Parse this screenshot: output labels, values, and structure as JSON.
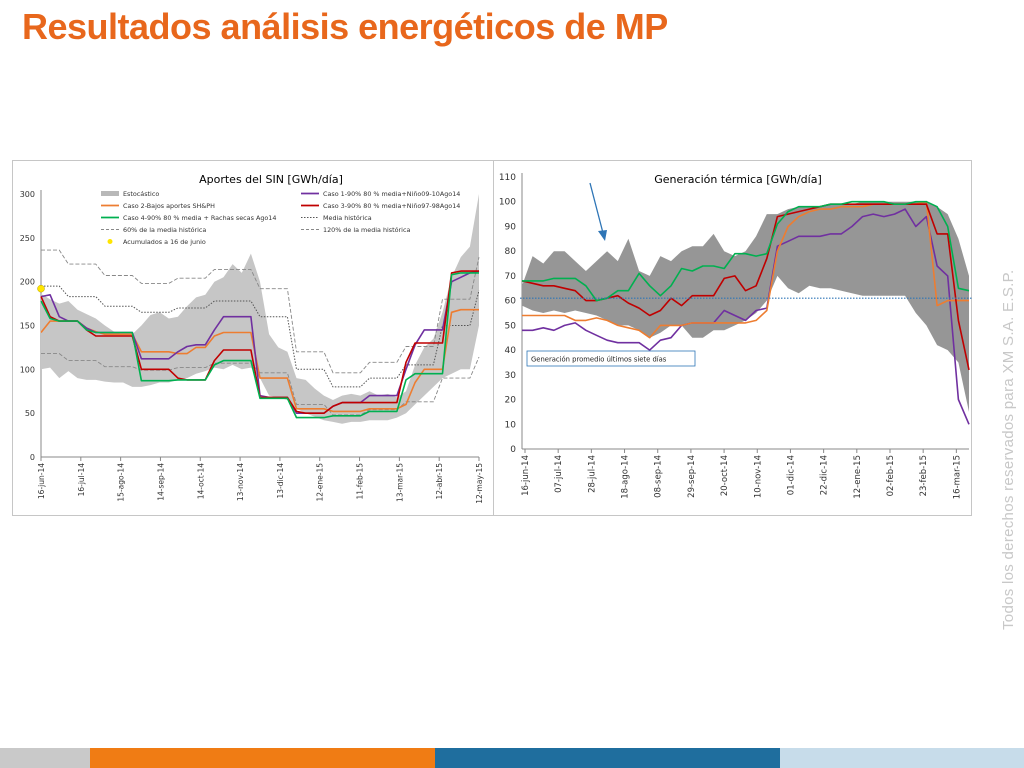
{
  "slide": {
    "title": "Resultados análisis energéticos de MP",
    "copyright": "Todos los derechos reservados para XM S.A. E.S.P.",
    "colors": {
      "title": "#E8671C",
      "copyright": "#c8c8c8",
      "footer": [
        "#c9c9c9",
        "#F07C14",
        "#1F6E9E",
        "#c7dcea"
      ]
    }
  },
  "chart_data": [
    {
      "type": "line",
      "title": "Aportes del SIN [GWh/día]",
      "ylim": [
        0,
        300
      ],
      "yticks": [
        0,
        50,
        100,
        150,
        200,
        250,
        300
      ],
      "x_tick_labels": [
        "16-jun-14",
        "16-jul-14",
        "15-ago-14",
        "14-sep-14",
        "14-oct-14",
        "13-nov-14",
        "13-dic-14",
        "12-ene-15",
        "11-feb-15",
        "13-mar-15",
        "12-abr-15",
        "12-may-15"
      ],
      "n_points": 49,
      "legend": {
        "placement": "top",
        "entries": [
          {
            "label": "Estocástico",
            "style": "band",
            "color": "#c0c0c0"
          },
          {
            "label": "Caso 1-90% 80 % media+Niño09-10Ago14",
            "style": "line",
            "color": "#7030A0"
          },
          {
            "label": "Caso 2-Bajos aportes SH&PH",
            "style": "line",
            "color": "#ED7D31"
          },
          {
            "label": "Caso 3-90% 80 % media+Niño97-98Ago14",
            "style": "line",
            "color": "#C00000"
          },
          {
            "label": "Caso 4-90% 80 % media + Rachas secas Ago14",
            "style": "line",
            "color": "#00B050"
          },
          {
            "label": "Media histórica",
            "style": "dotted",
            "color": "#555555"
          },
          {
            "label": "60% de la media histórica",
            "style": "dashed",
            "color": "#888888"
          },
          {
            "label": "120% de la media histórica",
            "style": "dashed",
            "color": "#888888"
          },
          {
            "label": "Acumulados a 16 de junio",
            "style": "marker",
            "color": "#FFE500"
          }
        ]
      },
      "band_upper": [
        186,
        180,
        175,
        178,
        168,
        163,
        158,
        150,
        143,
        140,
        140,
        150,
        162,
        165,
        158,
        160,
        172,
        182,
        185,
        200,
        205,
        220,
        210,
        232,
        200,
        140,
        125,
        120,
        90,
        88,
        78,
        70,
        65,
        70,
        72,
        70,
        75,
        70,
        72,
        68,
        75,
        105,
        125,
        135,
        165,
        205,
        228,
        240,
        300
      ],
      "band_lower": [
        100,
        102,
        90,
        98,
        90,
        88,
        88,
        86,
        85,
        85,
        80,
        80,
        82,
        85,
        85,
        88,
        90,
        95,
        98,
        102,
        100,
        105,
        100,
        102,
        90,
        70,
        68,
        65,
        55,
        50,
        46,
        42,
        40,
        38,
        40,
        40,
        42,
        42,
        42,
        45,
        50,
        60,
        70,
        80,
        90,
        95,
        100,
        100,
        150
      ],
      "acumulado_point": {
        "x_index": 0,
        "y": 192
      },
      "series": [
        {
          "name": "Media histórica",
          "style": "dotted",
          "color": "#555555",
          "values": [
            195,
            195,
            195,
            183,
            183,
            183,
            183,
            172,
            172,
            172,
            172,
            165,
            165,
            165,
            165,
            170,
            170,
            170,
            170,
            178,
            178,
            178,
            178,
            178,
            160,
            160,
            160,
            160,
            100,
            100,
            100,
            100,
            80,
            80,
            80,
            80,
            90,
            90,
            90,
            90,
            105,
            105,
            105,
            105,
            150,
            150,
            150,
            150,
            190
          ]
        },
        {
          "name": "60% de la media histórica",
          "style": "dashed",
          "color": "#888888",
          "values": [
            118,
            118,
            118,
            110,
            110,
            110,
            110,
            103,
            103,
            103,
            103,
            99,
            99,
            99,
            99,
            102,
            102,
            102,
            102,
            107,
            107,
            107,
            107,
            107,
            96,
            96,
            96,
            96,
            60,
            60,
            60,
            60,
            48,
            48,
            48,
            48,
            54,
            54,
            54,
            54,
            63,
            63,
            63,
            63,
            90,
            90,
            90,
            90,
            114
          ]
        },
        {
          "name": "120% de la media histórica",
          "style": "dashed",
          "color": "#888888",
          "values": [
            236,
            236,
            236,
            220,
            220,
            220,
            220,
            207,
            207,
            207,
            207,
            198,
            198,
            198,
            198,
            204,
            204,
            204,
            204,
            214,
            214,
            214,
            214,
            214,
            192,
            192,
            192,
            192,
            120,
            120,
            120,
            120,
            96,
            96,
            96,
            96,
            108,
            108,
            108,
            108,
            126,
            126,
            126,
            126,
            180,
            180,
            180,
            180,
            228
          ]
        },
        {
          "name": "Caso 2-Bajos aportes SH&PH",
          "style": "line",
          "color": "#ED7D31",
          "values": [
            142,
            155,
            155,
            155,
            155,
            147,
            143,
            140,
            140,
            140,
            140,
            120,
            120,
            120,
            120,
            118,
            118,
            125,
            125,
            138,
            142,
            142,
            142,
            142,
            90,
            90,
            90,
            90,
            55,
            55,
            55,
            55,
            52,
            52,
            52,
            52,
            55,
            55,
            55,
            55,
            60,
            85,
            100,
            100,
            100,
            165,
            168,
            168,
            168
          ]
        },
        {
          "name": "Caso 1-90% 80 % media+Niño09-10Ago14",
          "style": "line",
          "color": "#7030A0",
          "values": [
            183,
            185,
            160,
            155,
            155,
            147,
            142,
            142,
            142,
            142,
            142,
            112,
            112,
            112,
            112,
            120,
            126,
            128,
            128,
            145,
            160,
            160,
            160,
            160,
            70,
            68,
            68,
            68,
            50,
            50,
            50,
            50,
            58,
            62,
            62,
            62,
            70,
            70,
            70,
            70,
            100,
            128,
            145,
            145,
            145,
            200,
            205,
            210,
            212
          ]
        },
        {
          "name": "Caso 3-90% 80 % media+Niño97-98Ago14",
          "style": "line",
          "color": "#C00000",
          "values": [
            183,
            160,
            155,
            155,
            155,
            145,
            138,
            138,
            138,
            138,
            138,
            100,
            100,
            100,
            100,
            90,
            88,
            88,
            88,
            110,
            122,
            122,
            122,
            122,
            68,
            68,
            68,
            68,
            52,
            50,
            50,
            50,
            58,
            62,
            62,
            62,
            62,
            62,
            62,
            62,
            108,
            130,
            130,
            130,
            130,
            210,
            212,
            212,
            212
          ]
        },
        {
          "name": "Caso 4-90% 80 % media + Rachas secas Ago14",
          "style": "line",
          "color": "#00B050",
          "values": [
            178,
            158,
            155,
            155,
            155,
            145,
            142,
            142,
            142,
            142,
            142,
            87,
            87,
            87,
            87,
            88,
            88,
            88,
            88,
            105,
            110,
            110,
            110,
            110,
            67,
            67,
            67,
            67,
            45,
            45,
            45,
            45,
            47,
            47,
            47,
            47,
            52,
            52,
            52,
            52,
            88,
            95,
            95,
            95,
            95,
            208,
            210,
            210,
            210
          ]
        }
      ]
    },
    {
      "type": "line",
      "title": "Generación térmica [GWh/día]",
      "ylim": [
        0,
        110
      ],
      "yticks": [
        0,
        10,
        20,
        30,
        40,
        50,
        60,
        70,
        80,
        90,
        100,
        110
      ],
      "x_tick_labels": [
        "16-jun-14",
        "07-jul-14",
        "28-jul-14",
        "18-ago-14",
        "08-sep-14",
        "29-sep-14",
        "20-oct-14",
        "10-nov-14",
        "01-dic-14",
        "22-dic-14",
        "12-ene-15",
        "02-feb-15",
        "23-feb-15",
        "16-mar-15"
      ],
      "n_points": 43,
      "annotation": "Generación promedio últimos siete días",
      "average_line": {
        "value": 61,
        "color": "#2E75B6"
      },
      "arrow_color": "#2E75B6",
      "band_upper": [
        66,
        78,
        75,
        80,
        80,
        76,
        72,
        76,
        80,
        76,
        85,
        72,
        70,
        78,
        76,
        80,
        82,
        82,
        87,
        80,
        78,
        80,
        86,
        95,
        95,
        97,
        98,
        98,
        98,
        99,
        99,
        99,
        100,
        100,
        100,
        100,
        100,
        100,
        100,
        98,
        95,
        85,
        70
      ],
      "band_lower": [
        58,
        56,
        55,
        56,
        55,
        56,
        55,
        54,
        52,
        50,
        50,
        48,
        45,
        47,
        50,
        50,
        45,
        45,
        48,
        48,
        50,
        52,
        55,
        60,
        70,
        65,
        63,
        66,
        65,
        65,
        64,
        63,
        62,
        62,
        62,
        62,
        62,
        55,
        50,
        42,
        40,
        35,
        15
      ],
      "series": [
        {
          "name": "Caso 1-90% 80 % media+Niño09-10Ago14",
          "color": "#7030A0",
          "values": [
            48,
            48,
            49,
            48,
            50,
            51,
            48,
            46,
            44,
            43,
            43,
            43,
            40,
            44,
            45,
            50,
            51,
            51,
            51,
            56,
            54,
            52,
            56,
            57,
            82,
            84,
            86,
            86,
            86,
            87,
            87,
            90,
            94,
            95,
            94,
            95,
            97,
            90,
            94,
            74,
            70,
            20,
            10
          ]
        },
        {
          "name": "Caso 2-Bajos aportes SH&PH",
          "color": "#ED7D31",
          "values": [
            54,
            54,
            54,
            54,
            54,
            52,
            52,
            53,
            52,
            50,
            49,
            48,
            45,
            50,
            50,
            50,
            51,
            51,
            51,
            51,
            51,
            51,
            52,
            56,
            80,
            90,
            94,
            96,
            97,
            97,
            98,
            98,
            98,
            99,
            99,
            99,
            99,
            99,
            100,
            58,
            60,
            60,
            60
          ]
        },
        {
          "name": "Caso 3-90% 80 % media+Niño97-98Ago14",
          "color": "#C00000",
          "values": [
            68,
            67,
            66,
            66,
            65,
            64,
            60,
            60,
            61,
            62,
            59,
            57,
            54,
            56,
            61,
            58,
            62,
            62,
            62,
            69,
            70,
            64,
            66,
            77,
            94,
            95,
            96,
            97,
            98,
            99,
            99,
            99,
            99,
            99,
            99,
            99,
            99,
            99,
            99,
            87,
            87,
            52,
            32
          ]
        },
        {
          "name": "Caso 4-90% 80 % media + Rachas secas Ago14",
          "color": "#00B050",
          "values": [
            68,
            68,
            68,
            69,
            69,
            69,
            66,
            60,
            61,
            64,
            64,
            71,
            66,
            62,
            66,
            73,
            72,
            74,
            74,
            73,
            79,
            79,
            78,
            79,
            91,
            96,
            98,
            98,
            98,
            99,
            99,
            100,
            100,
            100,
            100,
            99,
            99,
            100,
            100,
            98,
            90,
            65,
            64
          ]
        }
      ]
    }
  ]
}
